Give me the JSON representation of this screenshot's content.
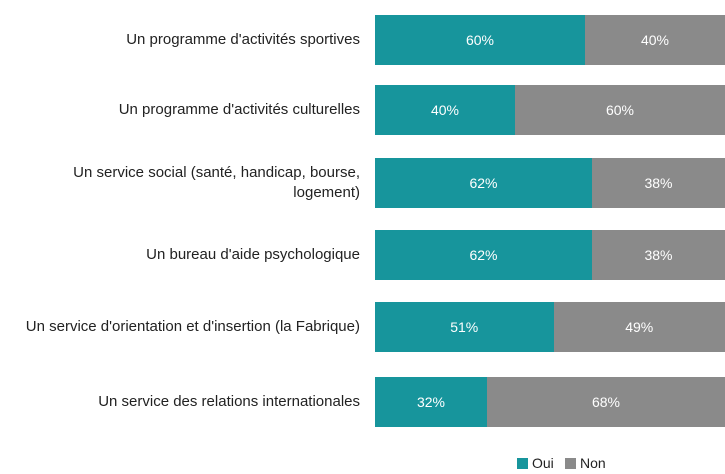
{
  "chart_data": {
    "type": "stacked-bar-horizontal",
    "categories": [
      "Un programme d'activités sportives",
      "Un programme d'activités culturelles",
      "Un service social (santé, handicap, bourse, logement)",
      "Un bureau d'aide psychologique",
      "Un service d'orientation et d'insertion (la Fabrique)",
      "Un service des relations internationales"
    ],
    "series": [
      {
        "name": "Oui",
        "color": "#17959c",
        "values": [
          60,
          40,
          62,
          62,
          51,
          32
        ],
        "value_labels": [
          "60%",
          "40%",
          "62%",
          "62%",
          "51%",
          "32%"
        ]
      },
      {
        "name": "Non",
        "color": "#8a8a8a",
        "values": [
          40,
          60,
          38,
          38,
          49,
          68
        ],
        "value_labels": [
          "40%",
          "60%",
          "38%",
          "38%",
          "49%",
          "68%"
        ]
      }
    ],
    "legend": "bottom"
  }
}
